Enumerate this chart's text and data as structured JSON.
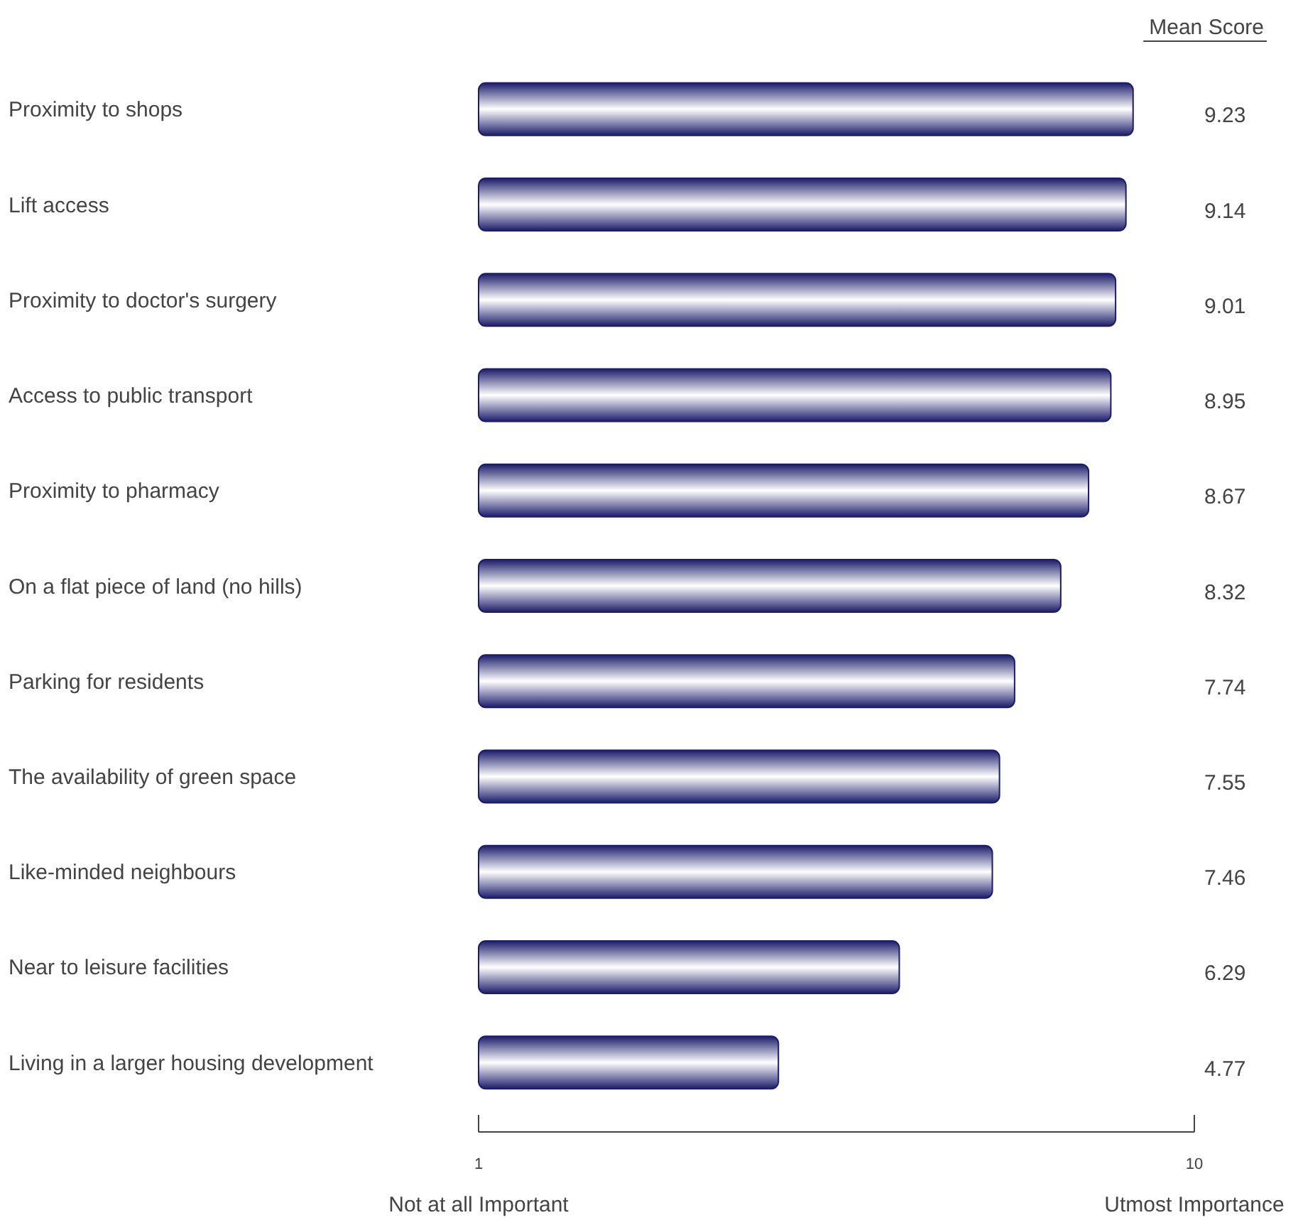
{
  "chart_data": {
    "type": "bar",
    "orientation": "horizontal",
    "categories": [
      "Proximity to shops",
      "Lift access",
      "Proximity to doctor's surgery",
      "Access to public transport",
      "Proximity to pharmacy",
      "On a flat piece of land (no hills)",
      "Parking for residents",
      "The availability of green space",
      "Like-minded neighbours",
      "Near to leisure facilities",
      "Living in a larger housing development"
    ],
    "values": [
      9.23,
      9.14,
      9.01,
      8.95,
      8.67,
      8.32,
      7.74,
      7.55,
      7.46,
      6.29,
      4.77
    ],
    "color": "#1c1c6b",
    "xlim": [
      1,
      10
    ],
    "xticks": [
      1,
      10
    ],
    "data_labels": true,
    "grid": false,
    "annotations": [
      "Not at all Important",
      "Utmost Importance",
      "Mean Score"
    ]
  }
}
